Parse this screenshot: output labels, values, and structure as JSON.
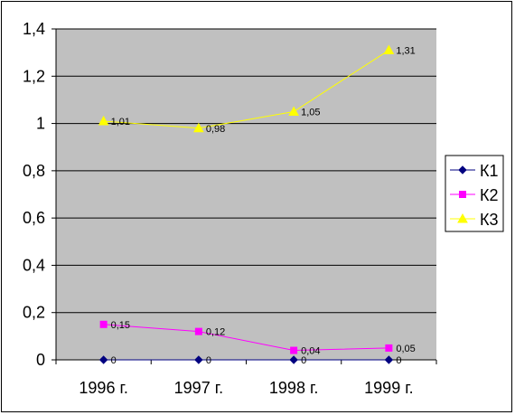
{
  "chart_data": {
    "type": "line",
    "categories": [
      "1996 г.",
      "1997 г.",
      "1998 г.",
      "1999 г."
    ],
    "ylim": [
      0,
      1.4
    ],
    "yticks": [
      "0",
      "0,2",
      "0,4",
      "0,6",
      "0,8",
      "1",
      "1,2",
      "1,4"
    ],
    "grid": true,
    "legend_position": "right",
    "plot_background": "#c0c0c0",
    "series": [
      {
        "name": "К1",
        "values": [
          0,
          0,
          0,
          0
        ],
        "labels": [
          "0",
          "0",
          "0",
          "0"
        ],
        "color": "#000080",
        "marker": "diamond"
      },
      {
        "name": "К2",
        "values": [
          0.15,
          0.12,
          0.04,
          0.05
        ],
        "labels": [
          "0,15",
          "0,12",
          "0,04",
          "0,05"
        ],
        "color": "#ff00ff",
        "marker": "square"
      },
      {
        "name": "К3",
        "values": [
          1.01,
          0.98,
          1.05,
          1.31
        ],
        "labels": [
          "1,01",
          "0,98",
          "1,05",
          "1,31"
        ],
        "color": "#ffff00",
        "marker": "triangle"
      }
    ]
  }
}
